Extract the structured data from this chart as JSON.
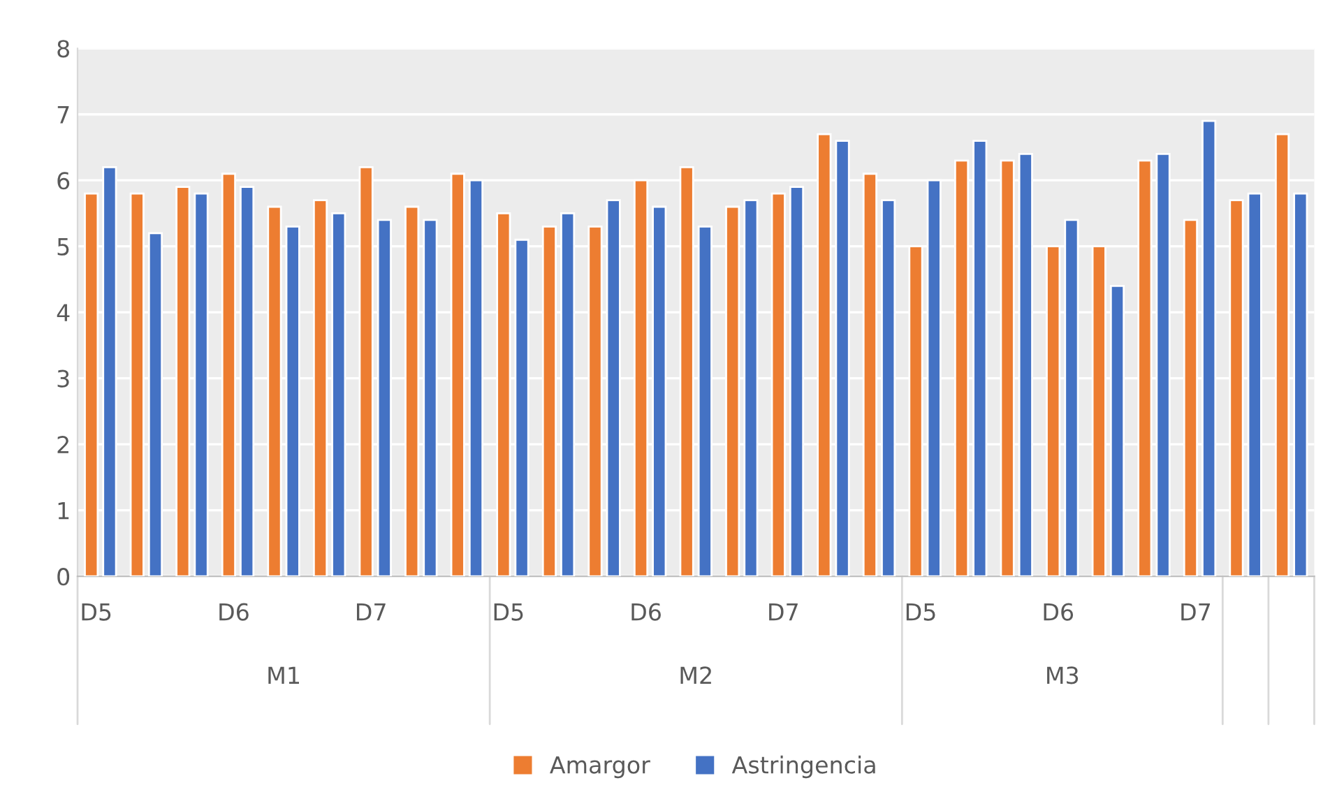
{
  "chart_data": {
    "type": "bar",
    "categories": [
      "D5",
      null,
      null,
      "D6",
      null,
      null,
      "D7",
      null,
      null,
      "D5",
      null,
      null,
      "D6",
      null,
      null,
      "D7",
      null,
      null,
      "D5",
      null,
      null,
      "D6",
      null,
      null,
      "D7",
      null,
      null
    ],
    "series": [
      {
        "name": "Amargor",
        "color": "#ed7d31",
        "values": [
          5.8,
          5.8,
          5.9,
          6.1,
          5.6,
          5.7,
          6.2,
          5.6,
          6.1,
          5.5,
          5.3,
          5.3,
          6.0,
          6.2,
          5.6,
          5.8,
          6.7,
          6.1,
          5.0,
          6.3,
          6.3,
          5.0,
          5.0,
          6.3,
          5.4,
          5.7,
          6.7
        ]
      },
      {
        "name": "Astringencia",
        "color": "#4472c4",
        "values": [
          6.2,
          5.2,
          5.8,
          5.9,
          5.3,
          5.5,
          5.4,
          5.4,
          6.0,
          5.1,
          5.5,
          5.7,
          5.6,
          5.3,
          5.7,
          5.9,
          6.6,
          5.7,
          6.0,
          6.6,
          6.4,
          5.4,
          4.4,
          6.4,
          6.9,
          5.8,
          5.8
        ]
      }
    ],
    "annotations": [
      "M1",
      "M2",
      "M3"
    ],
    "ylim": [
      0,
      8
    ],
    "yticks": [
      0,
      1,
      2,
      3,
      4,
      5,
      6,
      7,
      8
    ],
    "grid": "y",
    "legend": "bottom"
  }
}
